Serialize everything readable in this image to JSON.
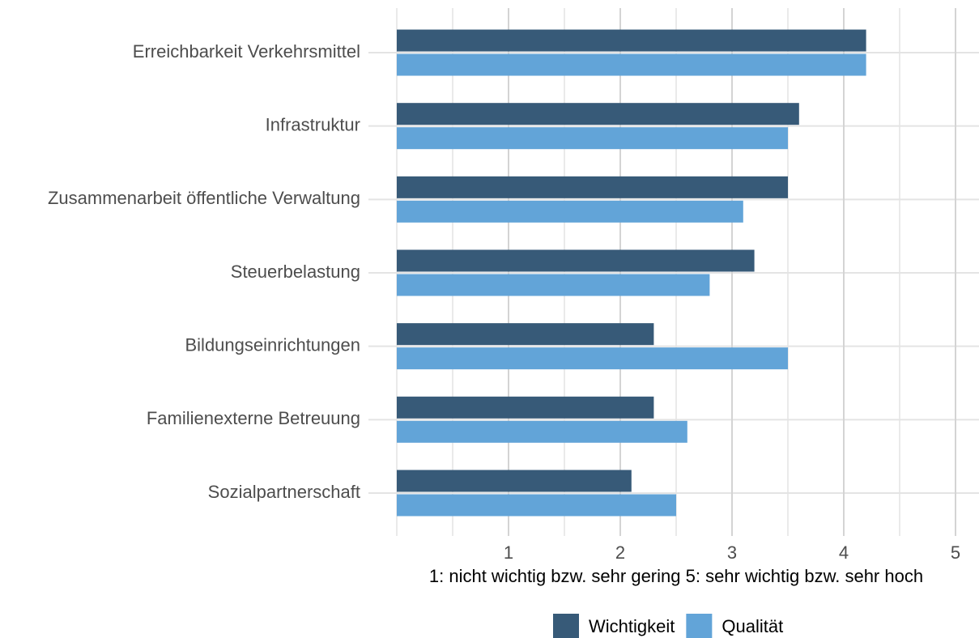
{
  "chart_data": {
    "type": "bar",
    "orientation": "horizontal",
    "categories": [
      "Erreichbarkeit Verkehrsmittel",
      "Infrastruktur",
      "Zusammenarbeit öffentliche Verwaltung",
      "Steuerbelastung",
      "Bildungseinrichtungen",
      "Familienexterne Betreuung",
      "Sozialpartnerschaft"
    ],
    "series": [
      {
        "name": "Wichtigkeit",
        "color": "#375a78",
        "values": [
          4.2,
          3.6,
          3.5,
          3.2,
          2.3,
          2.3,
          2.1
        ]
      },
      {
        "name": "Qualität",
        "color": "#62a4d8",
        "values": [
          4.2,
          3.5,
          3.1,
          2.8,
          3.5,
          2.6,
          2.5
        ]
      }
    ],
    "x_label": "1: nicht wichtig bzw. sehr gering   5: sehr wichtig bzw. sehr hoch",
    "xlim": [
      0,
      5.2
    ],
    "xticks": [
      1,
      2,
      3,
      4,
      5
    ],
    "xminorticks": [
      0,
      0.5,
      1.5,
      2.5,
      3.5,
      4.5
    ],
    "grid": true,
    "legend": "bottom"
  }
}
